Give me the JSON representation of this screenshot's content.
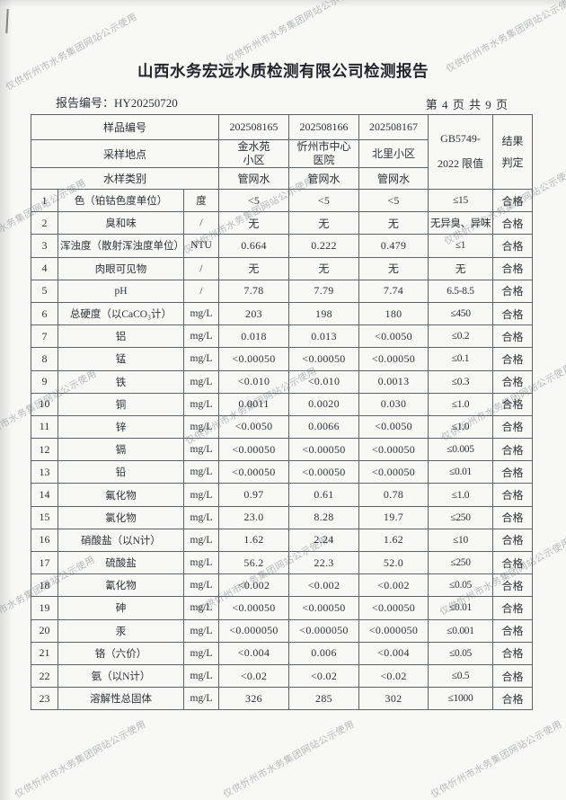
{
  "watermark": {
    "text": "仅供忻州市水务集团网站公示使用"
  },
  "header": {
    "title": "山西水务宏远水质检测有限公司检测报告",
    "report_no": "报告编号：HY20250720",
    "page_info": "第 4 页 共 9 页"
  },
  "table": {
    "header_rows": [
      {
        "label": "样品编号",
        "values": [
          "202508165",
          "202508166",
          "202508167"
        ]
      },
      {
        "label": "采样地点",
        "values": [
          "金水苑\n小区",
          "忻州市中心\n医院",
          "北里小区"
        ]
      },
      {
        "label": "水样类别",
        "values": [
          "管网水",
          "管网水",
          "管网水"
        ]
      }
    ],
    "limit_header": "GB5749-\n2022 限值",
    "result_header": "结果\n判定",
    "rows": [
      {
        "no": "1",
        "param": "色（铂钴色度单位）",
        "unit": "度",
        "v1": "<5",
        "v2": "<5",
        "v3": "<5",
        "limit": "≤15",
        "result": "合格"
      },
      {
        "no": "2",
        "param": "臭和味",
        "unit": "/",
        "v1": "无",
        "v2": "无",
        "v3": "无",
        "limit": "无异臭、异味",
        "result": "合格"
      },
      {
        "no": "3",
        "param": "浑浊度（散射浑浊度单位）",
        "unit": "NTU",
        "v1": "0.664",
        "v2": "0.222",
        "v3": "0.479",
        "limit": "≤1",
        "result": "合格"
      },
      {
        "no": "4",
        "param": "肉眼可见物",
        "unit": "/",
        "v1": "无",
        "v2": "无",
        "v3": "无",
        "limit": "无",
        "result": "合格"
      },
      {
        "no": "5",
        "param": "pH",
        "unit": "/",
        "v1": "7.78",
        "v2": "7.79",
        "v3": "7.74",
        "limit": "6.5-8.5",
        "result": "合格"
      },
      {
        "no": "6",
        "param": "总硬度（以CaCO₃计）",
        "unit": "mg/L",
        "v1": "203",
        "v2": "198",
        "v3": "180",
        "limit": "≤450",
        "result": "合格"
      },
      {
        "no": "7",
        "param": "铝",
        "unit": "mg/L",
        "v1": "0.018",
        "v2": "0.013",
        "v3": "<0.0050",
        "limit": "≤0.2",
        "result": "合格"
      },
      {
        "no": "8",
        "param": "锰",
        "unit": "mg/L",
        "v1": "<0.00050",
        "v2": "<0.00050",
        "v3": "<0.00050",
        "limit": "≤0.1",
        "result": "合格"
      },
      {
        "no": "9",
        "param": "铁",
        "unit": "mg/L",
        "v1": "<0.010",
        "v2": "<0.010",
        "v3": "0.0013",
        "limit": "≤0.3",
        "result": "合格"
      },
      {
        "no": "10",
        "param": "铜",
        "unit": "mg/L",
        "v1": "0.0011",
        "v2": "0.0020",
        "v3": "0.030",
        "limit": "≤1.0",
        "result": "合格"
      },
      {
        "no": "11",
        "param": "锌",
        "unit": "mg/L",
        "v1": "<0.0050",
        "v2": "0.0066",
        "v3": "<0.0050",
        "limit": "≤1.0",
        "result": "合格"
      },
      {
        "no": "12",
        "param": "镉",
        "unit": "mg/L",
        "v1": "<0.00050",
        "v2": "<0.00050",
        "v3": "<0.00050",
        "limit": "≤0.005",
        "result": "合格"
      },
      {
        "no": "13",
        "param": "铅",
        "unit": "mg/L",
        "v1": "<0.00050",
        "v2": "<0.00050",
        "v3": "<0.00050",
        "limit": "≤0.01",
        "result": "合格"
      },
      {
        "no": "14",
        "param": "氟化物",
        "unit": "mg/L",
        "v1": "0.97",
        "v2": "0.61",
        "v3": "0.78",
        "limit": "≤1.0",
        "result": "合格"
      },
      {
        "no": "15",
        "param": "氯化物",
        "unit": "mg/L",
        "v1": "23.0",
        "v2": "8.28",
        "v3": "19.7",
        "limit": "≤250",
        "result": "合格"
      },
      {
        "no": "16",
        "param": "硝酸盐（以N计）",
        "unit": "mg/L",
        "v1": "1.62",
        "v2": "2.24",
        "v3": "1.62",
        "limit": "≤10",
        "result": "合格"
      },
      {
        "no": "17",
        "param": "硫酸盐",
        "unit": "mg/L",
        "v1": "56.2",
        "v2": "22.3",
        "v3": "52.0",
        "limit": "≤250",
        "result": "合格"
      },
      {
        "no": "18",
        "param": "氰化物",
        "unit": "mg/L",
        "v1": "<0.002",
        "v2": "<0.002",
        "v3": "<0.002",
        "limit": "≤0.05",
        "result": "合格"
      },
      {
        "no": "19",
        "param": "砷",
        "unit": "mg/L",
        "v1": "<0.00050",
        "v2": "<0.00050",
        "v3": "<0.00050",
        "limit": "≤0.01",
        "result": "合格"
      },
      {
        "no": "20",
        "param": "汞",
        "unit": "mg/L",
        "v1": "<0.000050",
        "v2": "<0.000050",
        "v3": "<0.000050",
        "limit": "≤0.001",
        "result": "合格"
      },
      {
        "no": "21",
        "param": "铬（六价）",
        "unit": "mg/L",
        "v1": "<0.004",
        "v2": "0.006",
        "v3": "<0.004",
        "limit": "≤0.05",
        "result": "合格"
      },
      {
        "no": "22",
        "param": "氨（以N计）",
        "unit": "mg/L",
        "v1": "<0.02",
        "v2": "<0.02",
        "v3": "<0.02",
        "limit": "≤0.5",
        "result": "合格"
      },
      {
        "no": "23",
        "param": "溶解性总固体",
        "unit": "mg/L",
        "v1": "326",
        "v2": "285",
        "v3": "302",
        "limit": "≤1000",
        "result": "合格"
      }
    ]
  }
}
